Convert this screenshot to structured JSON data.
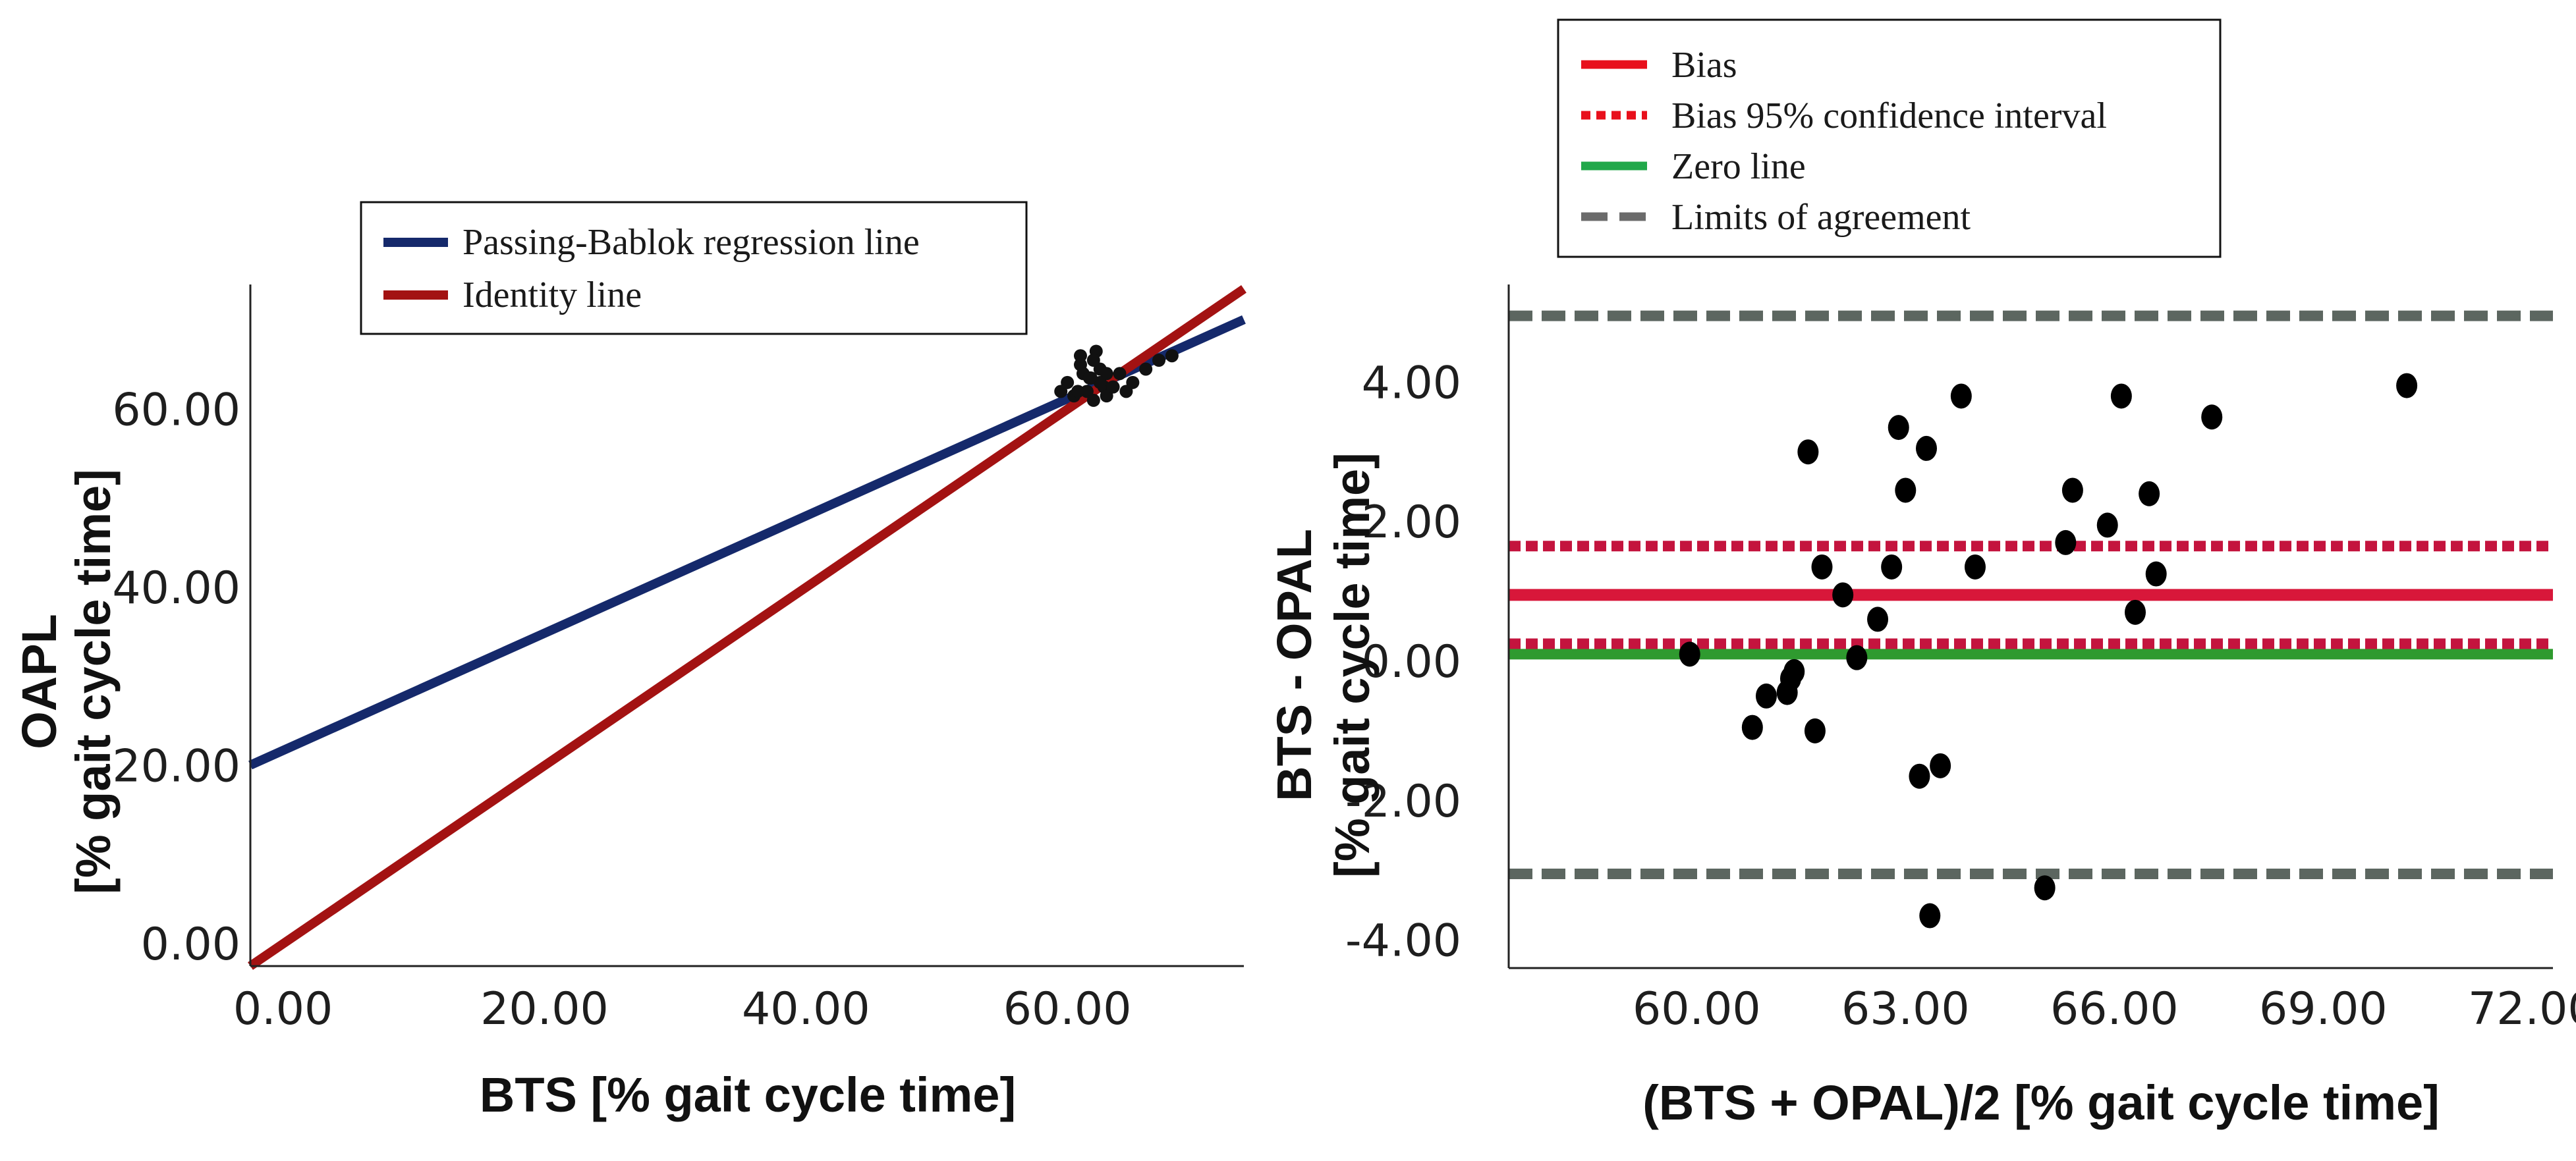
{
  "chart_data": [
    {
      "type": "scatter",
      "title": "",
      "xlabel": "BTS  [% gait cycle time]",
      "ylabel_line1": "OAPL",
      "ylabel_line2": "[% gait cycle time]",
      "xlim": [
        -2.5,
        73.5
      ],
      "ylim": [
        -2.5,
        74
      ],
      "x_ticks": [
        0,
        20,
        40,
        60
      ],
      "x_tick_labels": [
        "0.00",
        "20.00",
        "40.00",
        "60.00"
      ],
      "y_ticks": [
        0,
        20,
        40,
        60
      ],
      "y_tick_labels": [
        "0.00",
        "20.00",
        "40.00",
        "60.00"
      ],
      "legend_position": "top",
      "lines": [
        {
          "name": "Passing-Bablok regression line",
          "color": "#15296b",
          "intercept": 21.7,
          "slope": 0.658
        },
        {
          "name": "Identity line",
          "color": "#a31212",
          "intercept": 0,
          "slope": 1
        }
      ],
      "points": {
        "color": "#111111",
        "x": [
          59.5,
          60.0,
          60.5,
          61.0,
          61.2,
          61.5,
          61.8,
          62.0,
          62.2,
          62.5,
          62.8,
          63.0,
          63.5,
          64.0,
          64.5,
          65.0,
          66.0,
          67.0,
          68.0,
          61.0,
          62.0,
          63.0,
          62.5,
          60.8,
          61.7
        ],
        "y": [
          62.0,
          63.0,
          61.5,
          65.0,
          64.0,
          62.0,
          63.5,
          61.0,
          66.5,
          64.5,
          62.5,
          61.5,
          62.5,
          64.0,
          62.0,
          63.0,
          64.5,
          65.5,
          66.0,
          66.0,
          65.5,
          64.0,
          63.0,
          62.0,
          63.5
        ]
      }
    },
    {
      "type": "scatter",
      "title": "",
      "xlabel": "(BTS + OPAL)/2  [% gait cycle time]",
      "ylabel_line1": "BTS - OPAL",
      "ylabel_line2": "[% gait cycle time]",
      "xlim": [
        57.3,
        72.3
      ],
      "ylim": [
        -4.4,
        5.4
      ],
      "x_ticks": [
        60,
        63,
        66,
        69,
        72
      ],
      "x_tick_labels": [
        "60.00",
        "63.00",
        "66.00",
        "69.00",
        "72.00"
      ],
      "y_ticks": [
        -4,
        -2,
        0,
        2,
        4
      ],
      "y_tick_labels": [
        "-4.00",
        "-2.00",
        "0.00",
        "2.00",
        "4.00"
      ],
      "legend_position": "top-left",
      "reference_lines": [
        {
          "name": "Bias",
          "value": 0.95,
          "color": "#d8173a",
          "style": "solid"
        },
        {
          "name": "Bias 95% confidence interval",
          "value_low": 0.25,
          "value_high": 1.65,
          "color": "#c4143e",
          "style": "dotted"
        },
        {
          "name": "Zero line",
          "value": 0.1,
          "color": "#2f9a2f",
          "style": "solid"
        },
        {
          "name": "Limits of agreement",
          "value_low": -3.05,
          "value_high": 4.95,
          "color": "#5c6660",
          "style": "dashed"
        }
      ],
      "points": {
        "color": "#000000",
        "x": [
          59.9,
          60.8,
          61.0,
          61.3,
          61.35,
          61.4,
          61.6,
          61.7,
          61.8,
          62.1,
          62.3,
          62.6,
          62.8,
          62.9,
          63.0,
          63.2,
          63.3,
          63.35,
          63.5,
          63.8,
          64.0,
          65.0,
          65.3,
          65.4,
          65.9,
          66.1,
          66.3,
          66.5,
          66.6,
          67.4,
          70.2
        ],
        "y": [
          0.1,
          -0.95,
          -0.5,
          -0.45,
          -0.25,
          -0.15,
          3.0,
          -1.0,
          1.35,
          0.95,
          0.05,
          0.6,
          1.35,
          3.35,
          2.45,
          -1.65,
          3.05,
          -3.65,
          -1.5,
          3.8,
          1.35,
          -3.25,
          1.7,
          2.45,
          1.95,
          3.8,
          0.7,
          2.4,
          1.25,
          3.5,
          3.95
        ]
      }
    }
  ]
}
